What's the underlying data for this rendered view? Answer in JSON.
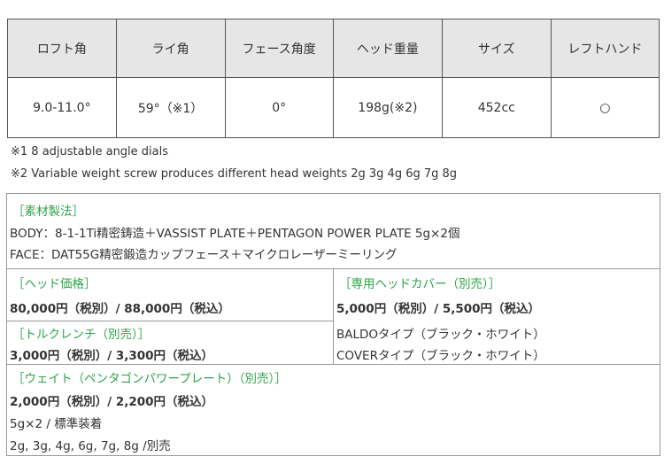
{
  "spec_table": {
    "headers": [
      "ロフト角",
      "ライ角",
      "フェース角度",
      "ヘッド重量",
      "サイズ",
      "レフトハンド"
    ],
    "values": [
      "9.0-11.0°",
      "59°（※1）",
      "0°",
      "198g(※2)",
      "452cc",
      "○"
    ]
  },
  "notes": [
    "※1  8 adjustable angle dials",
    "※2 Variable weight screw produces different head weights 2g 3g 4g 6g 7g 8g"
  ],
  "material": {
    "title": "［素材製法］",
    "body": "BODY：8-1-1Ti精密鋳造＋VASSIST PLATE＋PENTAGON POWER PLATE 5g×2個",
    "face": "FACE：DAT55G精密鍛造カップフェース＋マイクロレーザーミーリング"
  },
  "head_price": {
    "title": "［ヘッド価格］",
    "price": "80,000円（税別）/ 88,000円（税込）"
  },
  "torque": {
    "title": "［トルクレンチ（別売）］",
    "price": "3,000円（税別）/ 3,300円（税込）"
  },
  "cover": {
    "title": "［専用ヘッドカバー（別売）］",
    "price": "5,000円（税別）/ 5,500円（税込）",
    "types": [
      "BALDOタイプ（ブラック・ホワイト）",
      "COVERタイプ（ブラック・ホワイト）"
    ]
  },
  "weight": {
    "title": "［ウェイト（ペンタゴンパワープレート）（別売）］",
    "price": "2,000円（税別）/ 2,200円（税込）",
    "standard": "5g×2 / 標準装着",
    "options": "2g, 3g, 4g, 6g, 7g, 8g /別売"
  },
  "colors": {
    "accent": "#2ea44a",
    "header_bg": "#e6e6e6"
  }
}
